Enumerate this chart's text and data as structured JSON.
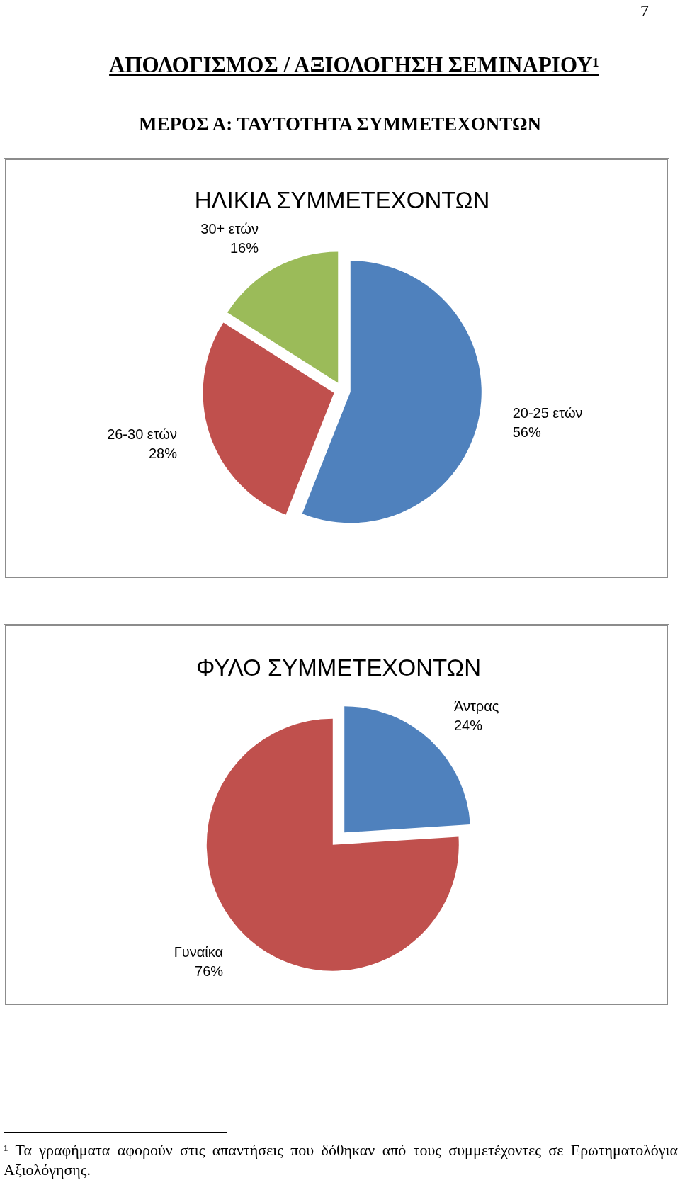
{
  "chart_data": [
    {
      "type": "pie",
      "title": "ΗΛΙΚΙΑ ΣΥΜΜΕΤΕΧΟΝΤΩΝ",
      "categories": [
        "20-25 ετών",
        "26-30 ετών",
        "30+ ετών"
      ],
      "values": [
        56,
        28,
        16
      ],
      "colors": [
        "#4f81bd",
        "#c0504d",
        "#9bbb59"
      ],
      "value_labels": [
        "56%",
        "28%",
        "16%"
      ],
      "annotations": [
        "7",
        "ΑΠΟΛΟΓΙΣΜΟΣ / ΑΞΙΟΛΟΓΗΣΗ ΣΕΜΙΝΑΡΙΟΥ¹",
        "ΜΕΡΟΣ Α: ΤΑΥΤΟΤΗΤΑ ΣΥΜΜΕΤΕΧΟΝΤΩΝ"
      ]
    },
    {
      "type": "pie",
      "title": "ΦΥΛΟ ΣΥΜΜΕΤΕΧΟΝΤΩΝ",
      "categories": [
        "Άντρας",
        "Γυναίκα"
      ],
      "values": [
        24,
        76
      ],
      "colors": [
        "#4f81bd",
        "#c0504d"
      ],
      "value_labels": [
        "24%",
        "76%"
      ],
      "annotations": [
        "¹ Τα γραφήματα αφορούν στις απαντήσεις που δόθηκαν από τους συμμετέχοντες σε Ερωτηματολόγια Αξιολόγησης."
      ]
    }
  ]
}
